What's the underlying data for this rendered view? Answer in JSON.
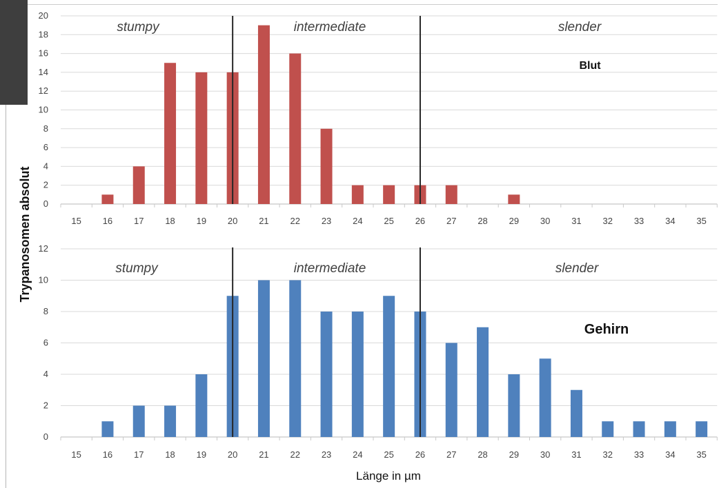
{
  "chart_data": [
    {
      "type": "bar",
      "categories": [
        "15",
        "16",
        "17",
        "18",
        "19",
        "20",
        "21",
        "22",
        "23",
        "24",
        "25",
        "26",
        "27",
        "28",
        "29",
        "30",
        "31",
        "32",
        "33",
        "34",
        "35"
      ],
      "series": [
        {
          "values": [
            0,
            1,
            4,
            15,
            14,
            14,
            19,
            16,
            8,
            2,
            2,
            2,
            2,
            0,
            1,
            0,
            0,
            0,
            0,
            0,
            0
          ]
        }
      ],
      "ylim": [
        0,
        20
      ],
      "yticks": [
        0,
        2,
        4,
        6,
        8,
        10,
        12,
        14,
        16,
        18,
        20
      ],
      "color": "#c0504d",
      "grid": true,
      "annotation": "Blut",
      "regions": [
        "stumpy",
        "intermediate",
        "slender"
      ],
      "dividers": [
        20,
        26
      ]
    },
    {
      "type": "bar",
      "categories": [
        "15",
        "16",
        "17",
        "18",
        "19",
        "20",
        "21",
        "22",
        "23",
        "24",
        "25",
        "26",
        "27",
        "28",
        "29",
        "30",
        "31",
        "32",
        "33",
        "34",
        "35"
      ],
      "series": [
        {
          "values": [
            0,
            1,
            2,
            2,
            4,
            9,
            10,
            10,
            8,
            8,
            9,
            8,
            6,
            7,
            4,
            5,
            3,
            1,
            1,
            1,
            1
          ]
        }
      ],
      "ylim": [
        0,
        12
      ],
      "yticks": [
        0,
        2,
        4,
        6,
        8,
        10,
        12
      ],
      "color": "#4f81bd",
      "grid": true,
      "annotation": "Gehirn",
      "regions": [
        "stumpy",
        "intermediate",
        "slender"
      ],
      "dividers": [
        20,
        26
      ]
    }
  ],
  "ylabel": "Trypanosomen absolut",
  "xlabel": "Länge in µm",
  "gridline_color": "#d9d9d9",
  "divider_color": "#262626"
}
